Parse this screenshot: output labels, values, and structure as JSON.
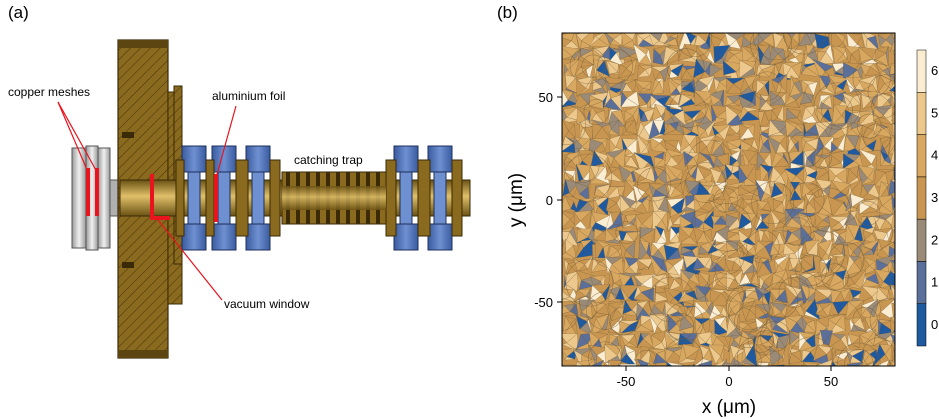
{
  "panel_a": {
    "label": "(a)",
    "annotations": {
      "copper_meshes": "copper meshes",
      "aluminium_foil": "aluminium foil",
      "catching_trap": "catching trap",
      "vacuum_window": "vacuum window"
    },
    "colors": {
      "body": "#8a6a1e",
      "body_dark": "#5c4510",
      "flange_blue": "#4a6fb5",
      "highlight_red": "#e8141e",
      "mesh_gray": "#c8c8c8"
    }
  },
  "panel_b": {
    "label": "(b)",
    "colors": {
      "level_0": "#1f5aa0",
      "level_1": "#5a6f9a",
      "level_2": "#9a8a78",
      "level_3": "#c89650",
      "level_4": "#d9a860",
      "level_5": "#ecc88c",
      "level_6": "#faedd2"
    }
  },
  "chart_data": {
    "type": "heatmap",
    "title": "",
    "xlabel": "x (μm)",
    "ylabel": "y (μm)",
    "xlim": [
      -85,
      85
    ],
    "ylim": [
      -85,
      85
    ],
    "xticks": [
      -50,
      0,
      50
    ],
    "yticks": [
      -50,
      0,
      50
    ],
    "colorbar": {
      "levels": [
        0,
        1,
        2,
        3,
        4,
        5,
        6
      ],
      "labels": [
        "0",
        "1",
        "2",
        "3",
        "4",
        "5",
        "6"
      ]
    },
    "pattern": "tiled contour map of overlapping circular features, values 0–6"
  }
}
